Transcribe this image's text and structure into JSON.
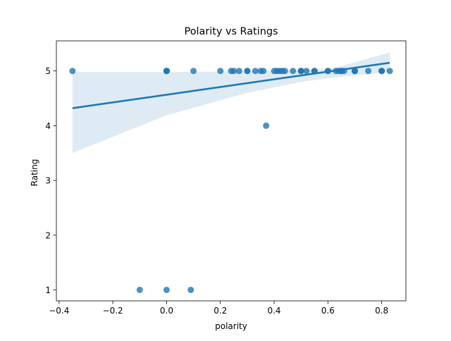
{
  "chart_data": {
    "type": "scatter",
    "title": "Polarity vs Ratings",
    "xlabel": "polarity",
    "ylabel": "Rating",
    "xlim": [
      -0.41,
      0.89
    ],
    "ylim": [
      0.8,
      5.55
    ],
    "xticks": [
      -0.4,
      -0.2,
      0.0,
      0.2,
      0.4,
      0.6,
      0.8
    ],
    "xtick_labels": [
      "−0.4",
      "−0.2",
      "0.0",
      "0.2",
      "0.4",
      "0.6",
      "0.8"
    ],
    "yticks": [
      1,
      2,
      3,
      4,
      5
    ],
    "ytick_labels": [
      "1",
      "2",
      "3",
      "4",
      "5"
    ],
    "grid": false,
    "legend": "none",
    "colors": {
      "point": "#1f77b4",
      "line": "#1f77b4",
      "band": "#1f77b4"
    },
    "points": [
      [
        -0.35,
        5
      ],
      [
        0.0,
        5
      ],
      [
        0.0,
        5
      ],
      [
        0.0,
        5
      ],
      [
        0.0,
        5
      ],
      [
        0.1,
        5
      ],
      [
        0.2,
        5
      ],
      [
        0.24,
        5
      ],
      [
        0.25,
        5
      ],
      [
        0.27,
        5
      ],
      [
        0.3,
        5
      ],
      [
        0.3,
        5
      ],
      [
        0.33,
        5
      ],
      [
        0.35,
        5
      ],
      [
        0.36,
        5
      ],
      [
        0.4,
        5
      ],
      [
        0.41,
        5
      ],
      [
        0.42,
        5
      ],
      [
        0.43,
        5
      ],
      [
        0.44,
        5
      ],
      [
        0.47,
        5
      ],
      [
        0.5,
        5
      ],
      [
        0.5,
        5
      ],
      [
        0.5,
        5
      ],
      [
        0.52,
        5
      ],
      [
        0.55,
        5
      ],
      [
        0.55,
        5
      ],
      [
        0.6,
        5
      ],
      [
        0.6,
        5
      ],
      [
        0.63,
        5
      ],
      [
        0.64,
        5
      ],
      [
        0.65,
        5
      ],
      [
        0.65,
        5
      ],
      [
        0.66,
        5
      ],
      [
        0.7,
        5
      ],
      [
        0.7,
        5
      ],
      [
        0.7,
        5
      ],
      [
        0.75,
        5
      ],
      [
        0.8,
        5
      ],
      [
        0.8,
        5
      ],
      [
        0.8,
        5
      ],
      [
        0.83,
        5
      ],
      [
        0.37,
        4
      ],
      [
        -0.1,
        1
      ],
      [
        0.0,
        1
      ],
      [
        0.09,
        1
      ]
    ],
    "regression": {
      "x": [
        -0.35,
        0.83
      ],
      "y": [
        4.32,
        5.15
      ]
    },
    "confidence_band": {
      "x": [
        -0.35,
        0.0,
        0.3,
        0.5,
        0.62,
        0.83
      ],
      "upper": [
        4.98,
        4.98,
        4.99,
        5.01,
        5.05,
        5.34
      ],
      "lower": [
        3.5,
        4.19,
        4.6,
        4.8,
        4.88,
        4.98
      ]
    }
  }
}
